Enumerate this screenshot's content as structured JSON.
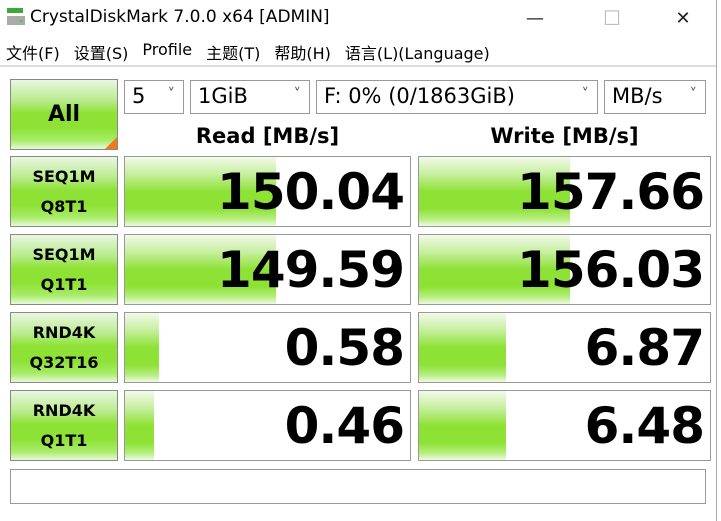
{
  "window": {
    "title": "CrystalDiskMark 7.0.0 x64 [ADMIN]",
    "minimize": "—",
    "maximize": "☐",
    "close": "✕"
  },
  "menu": [
    "文件(F)",
    "设置(S)",
    "Profile",
    "主题(T)",
    "帮助(H)",
    "语言(L)(Language)"
  ],
  "controls": {
    "all_label": "All",
    "count": "5",
    "size": "1GiB",
    "drive": "F: 0% (0/1863GiB)",
    "unit": "MB/s",
    "chevron": "˅"
  },
  "headers": {
    "read": "Read [MB/s]",
    "write": "Write [MB/s]"
  },
  "tests": [
    {
      "line1": "SEQ1M",
      "line2": "Q8T1",
      "read": "150.04",
      "write": "157.66",
      "read_fill": 0.53,
      "write_fill": 0.52
    },
    {
      "line1": "SEQ1M",
      "line2": "Q1T1",
      "read": "149.59",
      "write": "156.03",
      "read_fill": 0.53,
      "write_fill": 0.52
    },
    {
      "line1": "RND4K",
      "line2": "Q32T16",
      "read": "0.58",
      "write": "6.87",
      "read_fill": 0.12,
      "write_fill": 0.3
    },
    {
      "line1": "RND4K",
      "line2": "Q1T1",
      "read": "0.46",
      "write": "6.48",
      "read_fill": 0.1,
      "write_fill": 0.3
    }
  ],
  "status": "",
  "colors": {
    "bar": "#8ee236",
    "corner": "#f07a1a"
  }
}
